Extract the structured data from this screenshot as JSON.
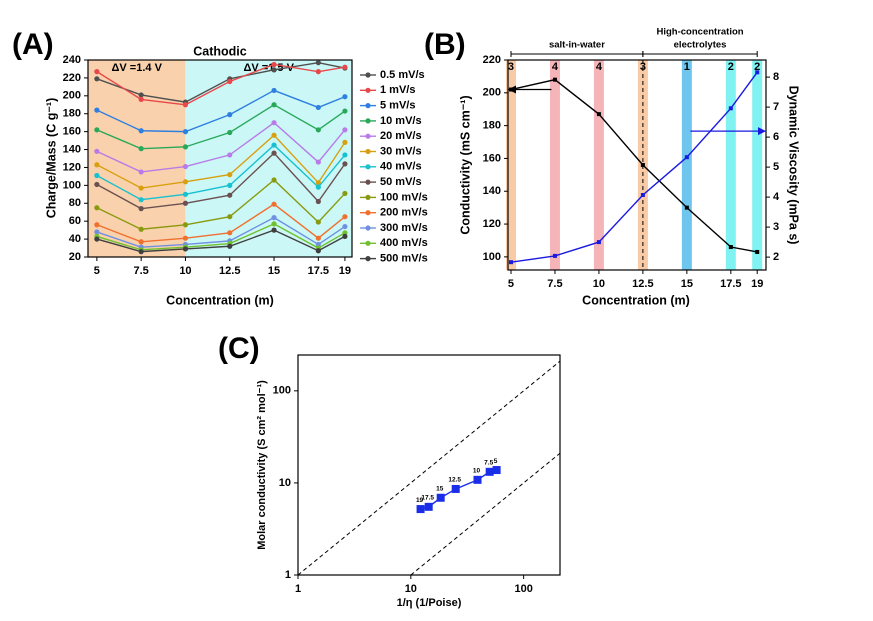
{
  "chart_data": [
    {
      "type": "line",
      "panel": "(A)",
      "title": "Cathodic",
      "x_label": "Concentration (m)",
      "y_label": "Charge/Mass (C g⁻¹)",
      "x": [
        5,
        7.5,
        10,
        12.5,
        15,
        17.5,
        19
      ],
      "xlim": [
        4.5,
        19.4
      ],
      "ylim": [
        20,
        240
      ],
      "xticks": [
        5,
        7.5,
        10,
        12.5,
        15,
        17.5,
        19
      ],
      "yticks": [
        20,
        40,
        60,
        80,
        100,
        120,
        140,
        160,
        180,
        200,
        220,
        240
      ],
      "regions": [
        {
          "from": 4.5,
          "to": 10,
          "label": "ΔV =1.4 V",
          "color": "#f9d2ad"
        },
        {
          "from": 10,
          "to": 19.4,
          "label": "ΔV =1.5 V",
          "color": "#cbf8f7"
        }
      ],
      "series": [
        {
          "name": "0.5 mV/s",
          "color": "#505050",
          "values": [
            219,
            201,
            193,
            219,
            229,
            237,
            231
          ]
        },
        {
          "name": "1 mV/s",
          "color": "#e8484a",
          "values": [
            227,
            196,
            190,
            216,
            235,
            227,
            232
          ]
        },
        {
          "name": "5 mV/s",
          "color": "#2f7fe0",
          "values": [
            184,
            161,
            160,
            179,
            206,
            187,
            199
          ]
        },
        {
          "name": "10 mV/s",
          "color": "#2aa85a",
          "values": [
            162,
            141,
            143,
            159,
            190,
            162,
            183
          ]
        },
        {
          "name": "20 mV/s",
          "color": "#b87be8",
          "values": [
            138,
            115,
            121,
            134,
            170,
            126,
            162
          ]
        },
        {
          "name": "30 mV/s",
          "color": "#d8a010",
          "values": [
            123,
            97,
            104,
            112,
            156,
            103,
            148
          ]
        },
        {
          "name": "40 mV/s",
          "color": "#18c0d0",
          "values": [
            111,
            84,
            90,
            100,
            145,
            98,
            134
          ]
        },
        {
          "name": "50 mV/s",
          "color": "#6a5050",
          "values": [
            101,
            74,
            80,
            89,
            136,
            82,
            124
          ]
        },
        {
          "name": "100 mV/s",
          "color": "#8a9a10",
          "values": [
            75,
            51,
            56,
            65,
            106,
            59,
            91
          ]
        },
        {
          "name": "200 mV/s",
          "color": "#f07030",
          "values": [
            56,
            37,
            41,
            47,
            79,
            41,
            65
          ]
        },
        {
          "name": "300 mV/s",
          "color": "#7090e0",
          "values": [
            48,
            31,
            34,
            38,
            64,
            34,
            54
          ]
        },
        {
          "name": "400 mV/s",
          "color": "#70c030",
          "values": [
            43,
            28,
            31,
            35,
            57,
            30,
            47
          ]
        },
        {
          "name": "500 mV/s",
          "color": "#404040",
          "values": [
            40,
            26,
            29,
            32,
            50,
            27,
            43
          ]
        }
      ]
    },
    {
      "type": "line",
      "panel": "(B)",
      "x_label": "Concentration (m)",
      "y_label": "Conductivity (mS cm⁻¹)",
      "y2_label": "Dynamic Viscosity (mPa s)",
      "x": [
        5,
        7.5,
        10,
        12.5,
        15,
        17.5,
        19
      ],
      "xlim": [
        4.83,
        19.5
      ],
      "ylim": [
        92,
        220
      ],
      "y2lim": [
        1.57,
        8.57
      ],
      "xticks": [
        5,
        7.5,
        10,
        12.5,
        15,
        17.5,
        19
      ],
      "yticks": [
        100,
        120,
        140,
        160,
        180,
        200,
        220
      ],
      "y2ticks": [
        2,
        3,
        4,
        5,
        6,
        7,
        8
      ],
      "bands": [
        {
          "x": 5,
          "n": 3,
          "color": "#f8cba6"
        },
        {
          "x": 7.5,
          "n": 4,
          "color": "#f5b5b8"
        },
        {
          "x": 10,
          "n": 4,
          "color": "#f5b5b8"
        },
        {
          "x": 12.5,
          "n": 3,
          "color": "#f8cba6"
        },
        {
          "x": 15,
          "n": 1,
          "color": "#6ec6ee"
        },
        {
          "x": 17.5,
          "n": 2,
          "color": "#80f2f2"
        },
        {
          "x": 19,
          "n": 2,
          "color": "#80f2f2"
        }
      ],
      "divider": 12.5,
      "groups": [
        {
          "from": 5,
          "to": 12.5,
          "label_lines": [
            "salt-in-water"
          ]
        },
        {
          "from": 12.5,
          "to": 19,
          "label_lines": [
            "High-concentration",
            "electrolytes"
          ]
        }
      ],
      "arrows": [
        {
          "axis": "y",
          "y": 202,
          "from": 7.3,
          "to": 4.83,
          "color": "#000000"
        },
        {
          "axis": "y2",
          "y": 6.2,
          "from": 15.2,
          "to": 19.5,
          "color": "#1a1ae0"
        }
      ],
      "series": [
        {
          "name": "Conductivity",
          "color": "#000000",
          "values": [
            202,
            208,
            187,
            156,
            130,
            106,
            103
          ]
        },
        {
          "name": "Dynamic Viscosity",
          "color": "#1a1ae0",
          "axis": "y2",
          "values": [
            1.83,
            2.04,
            2.5,
            4.07,
            5.33,
            6.96,
            8.16
          ]
        }
      ]
    },
    {
      "type": "scatter",
      "panel": "(C)",
      "x_label": "1/η (1/Poise)",
      "y_label": "Molar conductivity (S cm² mol⁻¹)",
      "xlog": true,
      "ylog": true,
      "xlim": [
        1,
        210
      ],
      "ylim": [
        1,
        245
      ],
      "xticks": [
        1,
        10,
        100
      ],
      "yticks": [
        1,
        10,
        100
      ],
      "reference_lines": [
        {
          "x": [
            1,
            210
          ],
          "y": [
            1,
            210
          ]
        },
        {
          "x": [
            10,
            210
          ],
          "y": [
            1,
            21
          ]
        }
      ],
      "series": [
        {
          "color": "#1a2ee8",
          "x": [
            12.2,
            14.4,
            18.4,
            25,
            39,
            50,
            57.6
          ],
          "values": [
            5.2,
            5.5,
            6.9,
            8.6,
            10.8,
            13.2,
            13.8
          ],
          "point_labels": [
            19,
            17.5,
            15,
            12.5,
            10,
            7.5,
            5
          ]
        }
      ]
    }
  ]
}
